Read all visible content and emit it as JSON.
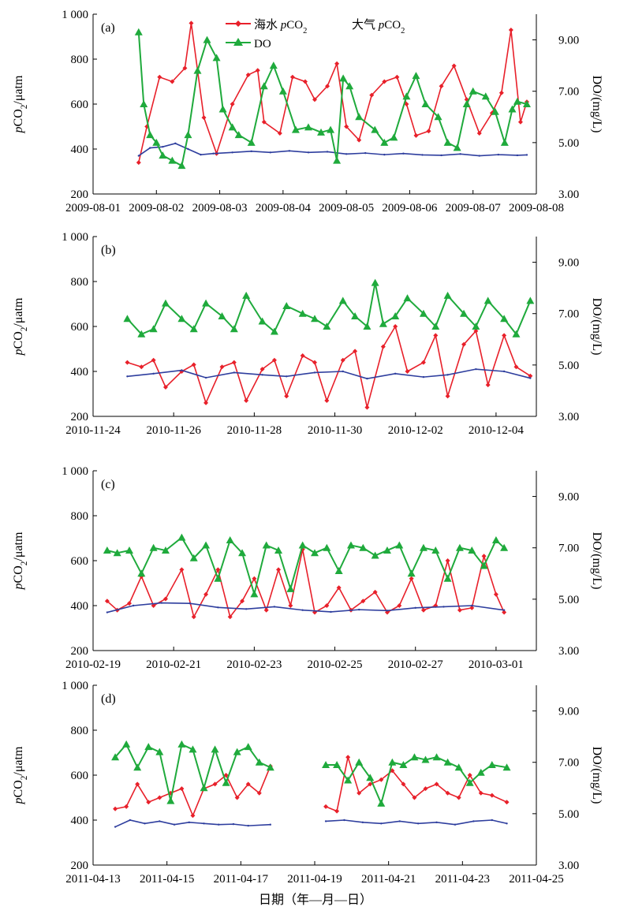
{
  "figure": {
    "xlabel": "日期（年—月—日）"
  },
  "legend": {
    "seawater": "海水 pCO2",
    "atmosphere": "大气 pCO2",
    "do": "DO"
  },
  "colors": {
    "seawater": "#e8202a",
    "atmosphere": "#2e3e9e",
    "do": "#1faa3c",
    "axis": "#000000"
  },
  "chart_data": [
    {
      "type": "line",
      "panel": "(a)",
      "ylabel": "pCO2/μatm",
      "y2label": "DO/(mg/L)",
      "ylim": [
        200,
        1000
      ],
      "yticks": [
        200,
        400,
        600,
        800,
        1000
      ],
      "ytick_labels": [
        "200",
        "400",
        "600",
        "800",
        "1 000"
      ],
      "y2lim": [
        3.0,
        10.0
      ],
      "y2ticks": [
        3.0,
        5.0,
        7.0,
        9.0
      ],
      "y2tick_labels": [
        "3.00",
        "5.00",
        "7.00",
        "9.00"
      ],
      "xlim": [
        "2009-08-01",
        "2009-08-08"
      ],
      "xticks": [
        "2009-08-01",
        "2009-08-02",
        "2009-08-03",
        "2009-08-04",
        "2009-08-05",
        "2009-08-06",
        "2009-08-07",
        "2009-08-08"
      ],
      "series": [
        {
          "name": "海水 pCO2",
          "axis": "left",
          "x": [
            0.72,
            0.85,
            1.05,
            1.25,
            1.45,
            1.55,
            1.75,
            1.95,
            2.2,
            2.45,
            2.6,
            2.7,
            2.95,
            3.15,
            3.35,
            3.5,
            3.7,
            3.85,
            4.0,
            4.2,
            4.4,
            4.6,
            4.8,
            4.95,
            5.1,
            5.3,
            5.5,
            5.7,
            5.9,
            6.1,
            6.3,
            6.45,
            6.6,
            6.75,
            6.85
          ],
          "y": [
            340,
            500,
            720,
            700,
            760,
            960,
            540,
            380,
            600,
            730,
            750,
            520,
            470,
            720,
            700,
            620,
            680,
            780,
            500,
            440,
            640,
            700,
            720,
            600,
            460,
            480,
            680,
            770,
            620,
            470,
            560,
            650,
            930,
            520,
            610
          ]
        },
        {
          "name": "大气 pCO2",
          "axis": "left",
          "x": [
            0.72,
            0.9,
            1.1,
            1.3,
            1.5,
            1.7,
            1.9,
            2.2,
            2.5,
            2.8,
            3.1,
            3.4,
            3.7,
            4.0,
            4.3,
            4.6,
            4.9,
            5.2,
            5.5,
            5.8,
            6.1,
            6.4,
            6.7,
            6.85
          ],
          "y": [
            370,
            405,
            410,
            425,
            400,
            375,
            380,
            385,
            390,
            385,
            392,
            385,
            388,
            378,
            382,
            375,
            380,
            374,
            372,
            378,
            370,
            375,
            372,
            374
          ]
        },
        {
          "name": "DO",
          "axis": "right",
          "x": [
            0.72,
            0.8,
            0.9,
            1.0,
            1.1,
            1.25,
            1.4,
            1.5,
            1.65,
            1.8,
            1.95,
            2.05,
            2.2,
            2.3,
            2.5,
            2.7,
            2.85,
            3.0,
            3.2,
            3.4,
            3.6,
            3.75,
            3.85,
            3.95,
            4.05,
            4.2,
            4.45,
            4.6,
            4.75,
            4.95,
            5.1,
            5.25,
            5.45,
            5.6,
            5.75,
            5.9,
            6.0,
            6.2,
            6.35,
            6.5,
            6.62,
            6.7,
            6.85
          ],
          "y": [
            9.3,
            6.5,
            5.3,
            5.0,
            4.5,
            4.3,
            4.1,
            5.3,
            7.8,
            9.0,
            8.3,
            6.3,
            5.6,
            5.3,
            5.0,
            7.2,
            8.0,
            7.0,
            5.5,
            5.6,
            5.4,
            5.5,
            4.3,
            7.5,
            7.2,
            6.0,
            5.5,
            5.0,
            5.2,
            6.8,
            7.6,
            6.5,
            6.0,
            5.0,
            4.8,
            6.5,
            7.0,
            6.8,
            6.2,
            5.0,
            6.3,
            6.6,
            6.5
          ]
        }
      ]
    },
    {
      "type": "line",
      "panel": "(b)",
      "ylabel": "pCO2/μatm",
      "y2label": "DO/(mg/L)",
      "ylim": [
        200,
        1000
      ],
      "yticks": [
        200,
        400,
        600,
        800,
        1000
      ],
      "ytick_labels": [
        "200",
        "400",
        "600",
        "800",
        "1 000"
      ],
      "y2lim": [
        3.0,
        10.0
      ],
      "y2ticks": [
        3.0,
        5.0,
        7.0,
        9.0
      ],
      "y2tick_labels": [
        "3.00",
        "5.00",
        "7.00",
        "9.00"
      ],
      "xlim": [
        "2010-11-24",
        "2010-12-05"
      ],
      "xticks": [
        "2010-11-24",
        "2010-11-26",
        "2010-11-28",
        "2010-11-30",
        "2010-12-02",
        "2010-12-04"
      ],
      "series": [
        {
          "name": "海水 pCO2",
          "axis": "left",
          "x": [
            0.85,
            1.2,
            1.5,
            1.8,
            2.2,
            2.5,
            2.8,
            3.2,
            3.5,
            3.8,
            4.2,
            4.5,
            4.8,
            5.2,
            5.5,
            5.8,
            6.2,
            6.5,
            6.8,
            7.2,
            7.5,
            7.8,
            8.2,
            8.5,
            8.8,
            9.2,
            9.5,
            9.8,
            10.2,
            10.5,
            10.85
          ],
          "y": [
            440,
            420,
            450,
            330,
            400,
            430,
            260,
            420,
            440,
            270,
            410,
            450,
            290,
            470,
            440,
            270,
            450,
            490,
            240,
            510,
            600,
            400,
            440,
            560,
            290,
            520,
            580,
            340,
            560,
            420,
            380
          ]
        },
        {
          "name": "大气 pCO2",
          "axis": "left",
          "x": [
            0.85,
            1.5,
            2.2,
            2.8,
            3.5,
            4.2,
            4.8,
            5.5,
            6.2,
            6.8,
            7.5,
            8.2,
            8.8,
            9.5,
            10.2,
            10.85
          ],
          "y": [
            378,
            390,
            405,
            372,
            395,
            385,
            378,
            395,
            400,
            368,
            390,
            375,
            385,
            410,
            400,
            370
          ]
        },
        {
          "name": "DO",
          "axis": "right",
          "x": [
            0.85,
            1.2,
            1.5,
            1.8,
            2.2,
            2.5,
            2.8,
            3.2,
            3.5,
            3.8,
            4.2,
            4.5,
            4.8,
            5.2,
            5.5,
            5.8,
            6.2,
            6.5,
            6.8,
            7.0,
            7.2,
            7.5,
            7.8,
            8.2,
            8.5,
            8.8,
            9.2,
            9.5,
            9.8,
            10.2,
            10.5,
            10.85
          ],
          "y": [
            6.8,
            6.2,
            6.4,
            7.4,
            6.8,
            6.4,
            7.4,
            6.9,
            6.4,
            7.7,
            6.7,
            6.3,
            7.3,
            7.0,
            6.8,
            6.5,
            7.5,
            6.9,
            6.5,
            8.2,
            6.6,
            6.9,
            7.6,
            7.0,
            6.5,
            7.7,
            7.0,
            6.5,
            7.5,
            6.8,
            6.2,
            7.5
          ]
        }
      ]
    },
    {
      "type": "line",
      "panel": "(c)",
      "ylabel": "pCO2/μatm",
      "y2label": "DO/(mg/L)",
      "ylim": [
        200,
        1000
      ],
      "yticks": [
        200,
        400,
        600,
        800,
        1000
      ],
      "ytick_labels": [
        "200",
        "400",
        "600",
        "800",
        "1 000"
      ],
      "y2lim": [
        3.0,
        10.0
      ],
      "y2ticks": [
        3.0,
        5.0,
        7.0,
        9.0
      ],
      "y2tick_labels": [
        "3.00",
        "5.00",
        "7.00",
        "9.00"
      ],
      "xlim": [
        "2010-02-19",
        "2010-03-02"
      ],
      "xticks": [
        "2010-02-19",
        "2010-02-21",
        "2010-02-23",
        "2010-02-25",
        "2010-02-27",
        "2010-03-01"
      ],
      "series": [
        {
          "name": "海水 pCO2",
          "axis": "left",
          "x": [
            0.35,
            0.6,
            0.9,
            1.2,
            1.5,
            1.8,
            2.2,
            2.5,
            2.8,
            3.1,
            3.4,
            3.7,
            4.0,
            4.3,
            4.6,
            4.9,
            5.2,
            5.5,
            5.8,
            6.1,
            6.4,
            6.7,
            7.0,
            7.3,
            7.6,
            7.9,
            8.2,
            8.5,
            8.8,
            9.1,
            9.4,
            9.7,
            10.0,
            10.2
          ],
          "y": [
            420,
            380,
            410,
            530,
            400,
            430,
            560,
            350,
            450,
            560,
            350,
            420,
            520,
            380,
            560,
            400,
            650,
            370,
            400,
            480,
            380,
            420,
            460,
            370,
            400,
            520,
            380,
            400,
            600,
            380,
            390,
            620,
            450,
            370
          ]
        },
        {
          "name": "大气 pCO2",
          "axis": "left",
          "x": [
            0.35,
            1.0,
            1.7,
            2.4,
            3.1,
            3.8,
            4.5,
            5.2,
            5.9,
            6.6,
            7.3,
            8.0,
            8.7,
            9.4,
            10.2
          ],
          "y": [
            370,
            400,
            412,
            410,
            392,
            385,
            395,
            380,
            372,
            382,
            378,
            390,
            395,
            400,
            380
          ]
        },
        {
          "name": "DO",
          "axis": "right",
          "x": [
            0.35,
            0.6,
            0.9,
            1.2,
            1.5,
            1.8,
            2.2,
            2.5,
            2.8,
            3.1,
            3.4,
            3.7,
            4.0,
            4.3,
            4.6,
            4.9,
            5.2,
            5.5,
            5.8,
            6.1,
            6.4,
            6.7,
            7.0,
            7.3,
            7.6,
            7.9,
            8.2,
            8.5,
            8.8,
            9.1,
            9.4,
            9.7,
            10.0,
            10.2
          ],
          "y": [
            6.9,
            6.8,
            6.9,
            6.0,
            7.0,
            6.9,
            7.4,
            6.6,
            7.1,
            5.8,
            7.3,
            6.8,
            5.2,
            7.1,
            6.9,
            5.4,
            7.1,
            6.8,
            7.0,
            6.1,
            7.1,
            7.0,
            6.7,
            6.9,
            7.1,
            6.0,
            7.0,
            6.9,
            5.8,
            7.0,
            6.9,
            6.3,
            7.3,
            7.0
          ]
        }
      ]
    },
    {
      "type": "line",
      "panel": "(d)",
      "ylabel": "pCO2/μatm",
      "y2label": "DO/(mg/L)",
      "ylim": [
        200,
        1000
      ],
      "yticks": [
        200,
        400,
        600,
        800,
        1000
      ],
      "ytick_labels": [
        "200",
        "400",
        "600",
        "800",
        "1 000"
      ],
      "y2lim": [
        3.0,
        10.0
      ],
      "y2ticks": [
        3.0,
        5.0,
        7.0,
        9.0
      ],
      "y2tick_labels": [
        "3.00",
        "5.00",
        "7.00",
        "9.00"
      ],
      "xlim": [
        "2011-04-13",
        "2011-04-25"
      ],
      "xticks": [
        "2011-04-13",
        "2011-04-15",
        "2011-04-17",
        "2011-04-19",
        "2011-04-21",
        "2011-04-23",
        "2011-04-25"
      ],
      "series": [
        {
          "name": "海水 pCO2",
          "axis": "left",
          "segments": [
            {
              "x": [
                0.6,
                0.9,
                1.2,
                1.5,
                1.8,
                2.1,
                2.4,
                2.7,
                3.0,
                3.3,
                3.6,
                3.9,
                4.2,
                4.5,
                4.8
              ],
              "y": [
                450,
                460,
                560,
                480,
                500,
                520,
                540,
                420,
                540,
                560,
                600,
                500,
                560,
                520,
                640
              ]
            },
            {
              "x": [
                6.3,
                6.6,
                6.9,
                7.2,
                7.5,
                7.8,
                8.1,
                8.4,
                8.7,
                9.0,
                9.3,
                9.6,
                9.9,
                10.2,
                10.5,
                10.8,
                11.2
              ],
              "y": [
                460,
                440,
                680,
                520,
                560,
                580,
                620,
                560,
                500,
                540,
                560,
                520,
                500,
                600,
                520,
                510,
                480
              ]
            }
          ]
        },
        {
          "name": "大气 pCO2",
          "axis": "left",
          "segments": [
            {
              "x": [
                0.6,
                1.0,
                1.4,
                1.8,
                2.2,
                2.6,
                3.0,
                3.4,
                3.8,
                4.2,
                4.8
              ],
              "y": [
                370,
                400,
                385,
                395,
                380,
                390,
                385,
                380,
                382,
                375,
                380
              ]
            },
            {
              "x": [
                6.3,
                6.8,
                7.3,
                7.8,
                8.3,
                8.8,
                9.3,
                9.8,
                10.3,
                10.8,
                11.2
              ],
              "y": [
                395,
                400,
                390,
                385,
                395,
                385,
                390,
                380,
                395,
                400,
                385
              ]
            }
          ]
        },
        {
          "name": "DO",
          "axis": "right",
          "segments": [
            {
              "x": [
                0.6,
                0.9,
                1.2,
                1.5,
                1.8,
                2.1,
                2.4,
                2.7,
                3.0,
                3.3,
                3.6,
                3.9,
                4.2,
                4.5,
                4.8
              ],
              "y": [
                7.2,
                7.7,
                6.8,
                7.6,
                7.4,
                5.5,
                7.7,
                7.5,
                6.0,
                7.5,
                6.2,
                7.4,
                7.6,
                7.0,
                6.8
              ]
            },
            {
              "x": [
                6.3,
                6.6,
                6.9,
                7.2,
                7.5,
                7.8,
                8.1,
                8.4,
                8.7,
                9.0,
                9.3,
                9.6,
                9.9,
                10.2,
                10.5,
                10.8,
                11.2
              ],
              "y": [
                6.9,
                6.9,
                6.3,
                7.0,
                6.4,
                5.4,
                7.0,
                6.9,
                7.2,
                7.1,
                7.2,
                7.0,
                6.8,
                6.2,
                6.6,
                6.9,
                6.8
              ]
            }
          ]
        }
      ]
    }
  ]
}
